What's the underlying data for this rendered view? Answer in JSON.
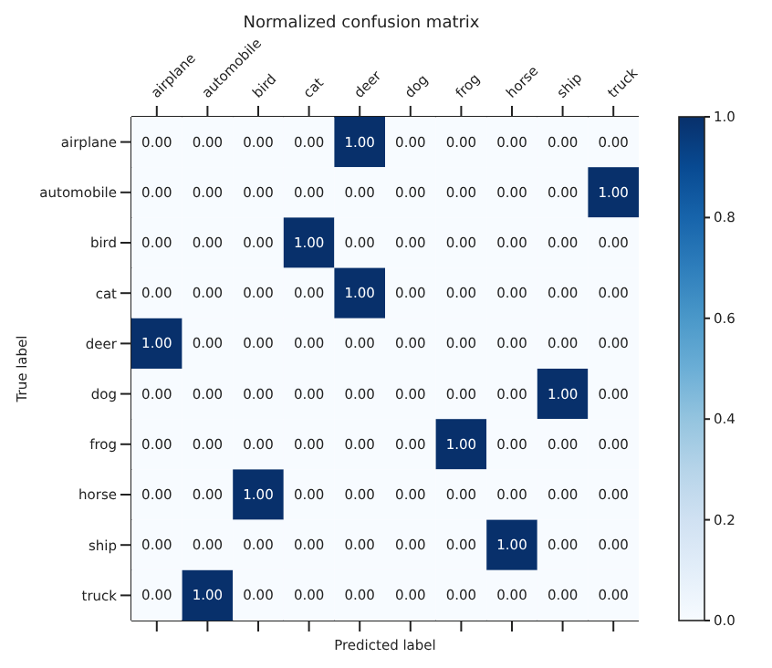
{
  "chart_data": {
    "type": "heatmap",
    "title": "Normalized confusion matrix",
    "xlabel": "Predicted label",
    "ylabel": "True label",
    "categories": [
      "airplane",
      "automobile",
      "bird",
      "cat",
      "deer",
      "dog",
      "frog",
      "horse",
      "ship",
      "truck"
    ],
    "y_categories": [
      "airplane",
      "automobile",
      "bird",
      "cat",
      "deer",
      "dog",
      "frog",
      "horse",
      "ship",
      "truck"
    ],
    "cells": [
      [
        0,
        0,
        0,
        0,
        1,
        0,
        0,
        0,
        0,
        0
      ],
      [
        0,
        0,
        0,
        0,
        0,
        0,
        0,
        0,
        0,
        1
      ],
      [
        0,
        0,
        0,
        1,
        0,
        0,
        0,
        0,
        0,
        0
      ],
      [
        0,
        0,
        0,
        0,
        1,
        0,
        0,
        0,
        0,
        0
      ],
      [
        1,
        0,
        0,
        0,
        0,
        0,
        0,
        0,
        0,
        0
      ],
      [
        0,
        0,
        0,
        0,
        0,
        0,
        0,
        0,
        1,
        0
      ],
      [
        0,
        0,
        0,
        0,
        0,
        0,
        1,
        0,
        0,
        0
      ],
      [
        0,
        0,
        1,
        0,
        0,
        0,
        0,
        0,
        0,
        0
      ],
      [
        0,
        0,
        0,
        0,
        0,
        0,
        0,
        1,
        0,
        0
      ],
      [
        0,
        1,
        0,
        0,
        0,
        0,
        0,
        0,
        0,
        0
      ]
    ],
    "cell_labels": [
      [
        "0.00",
        "0.00",
        "0.00",
        "0.00",
        "1.00",
        "0.00",
        "0.00",
        "0.00",
        "0.00",
        "0.00"
      ],
      [
        "0.00",
        "0.00",
        "0.00",
        "0.00",
        "0.00",
        "0.00",
        "0.00",
        "0.00",
        "0.00",
        "1.00"
      ],
      [
        "0.00",
        "0.00",
        "0.00",
        "1.00",
        "0.00",
        "0.00",
        "0.00",
        "0.00",
        "0.00",
        "0.00"
      ],
      [
        "0.00",
        "0.00",
        "0.00",
        "0.00",
        "1.00",
        "0.00",
        "0.00",
        "0.00",
        "0.00",
        "0.00"
      ],
      [
        "1.00",
        "0.00",
        "0.00",
        "0.00",
        "0.00",
        "0.00",
        "0.00",
        "0.00",
        "0.00",
        "0.00"
      ],
      [
        "0.00",
        "0.00",
        "0.00",
        "0.00",
        "0.00",
        "0.00",
        "0.00",
        "0.00",
        "1.00",
        "0.00"
      ],
      [
        "0.00",
        "0.00",
        "0.00",
        "0.00",
        "0.00",
        "0.00",
        "1.00",
        "0.00",
        "0.00",
        "0.00"
      ],
      [
        "0.00",
        "0.00",
        "1.00",
        "0.00",
        "0.00",
        "0.00",
        "0.00",
        "0.00",
        "0.00",
        "0.00"
      ],
      [
        "0.00",
        "0.00",
        "0.00",
        "0.00",
        "0.00",
        "0.00",
        "0.00",
        "1.00",
        "0.00",
        "0.00"
      ],
      [
        "0.00",
        "1.00",
        "0.00",
        "0.00",
        "0.00",
        "0.00",
        "0.00",
        "0.00",
        "0.00",
        "0.00"
      ]
    ],
    "clim": [
      0,
      1
    ],
    "cticks": [
      {
        "value": 0,
        "label": "0.0"
      },
      {
        "value": 0.2,
        "label": "0.2"
      },
      {
        "value": 0.4,
        "label": "0.4"
      },
      {
        "value": 0.6,
        "label": "0.6"
      },
      {
        "value": 0.8,
        "label": "0.8"
      },
      {
        "value": 1,
        "label": "1.0"
      }
    ]
  }
}
